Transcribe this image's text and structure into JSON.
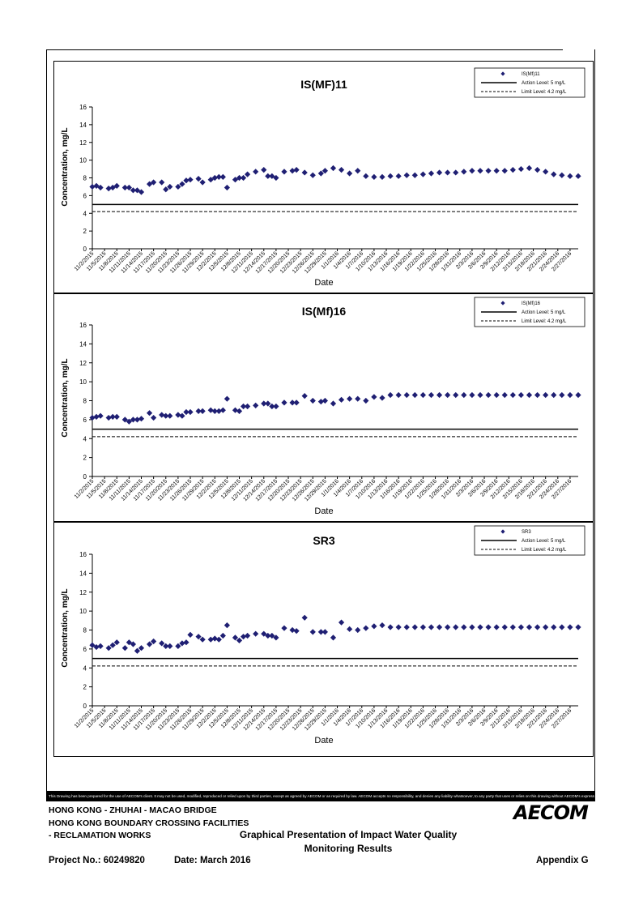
{
  "footer": {
    "disclaimer": "This Drawing has been prepared for the use of AECOM's client. It may not be used, modified, reproduced or relied upon by third parties, except as agreed by AECOM or as required by law. AECOM accepts no responsibility, and denies any liability whatsoever, to any party that uses or relies on this drawing without AECOM's express written consent.",
    "project_line1": "HONG KONG - ZHUHAI - MACAO BRIDGE",
    "project_line2": "HONG KONG BOUNDARY CROSSING FACILITIES",
    "project_line3": "- RECLAMATION WORKS",
    "logo": "AECOM",
    "title_line1": "Graphical Presentation of Impact Water Quality",
    "title_line2": "Monitoring Results",
    "project_no": "Project No.: 60249820",
    "date": "Date: March 2016",
    "appendix": "Appendix G"
  },
  "colors": {
    "marker": "#1f1f73",
    "line": "#000000"
  },
  "chart_data": [
    {
      "type": "scatter",
      "title": "IS(MF)11",
      "xlabel": "Date",
      "ylabel": "Concentration, mg/L",
      "ylim": [
        0,
        16
      ],
      "yticks": [
        0,
        2,
        4,
        6,
        8,
        10,
        12,
        14,
        16
      ],
      "xlim": [
        "11/2/2015",
        "2/29/2016"
      ],
      "grid": false,
      "legend_position": "top-right",
      "x_ticks": [
        "11/2/2015",
        "11/5/2015",
        "11/8/2015",
        "11/11/2015",
        "11/14/2015",
        "11/17/2015",
        "11/20/2015",
        "11/23/2015",
        "11/26/2015",
        "11/29/2015",
        "12/2/2015",
        "12/5/2015",
        "12/8/2015",
        "12/11/2015",
        "12/14/2015",
        "12/17/2015",
        "12/20/2015",
        "12/23/2015",
        "12/26/2015",
        "12/29/2015",
        "1/1/2016",
        "1/4/2016",
        "1/7/2016",
        "1/10/2016",
        "1/13/2016",
        "1/16/2016",
        "1/19/2016",
        "1/22/2016",
        "1/25/2016",
        "1/28/2016",
        "1/31/2016",
        "2/3/2016",
        "2/6/2016",
        "2/9/2016",
        "2/12/2016",
        "2/15/2016",
        "2/18/2016",
        "2/21/2016",
        "2/24/2016",
        "2/27/2016"
      ],
      "series": [
        {
          "name": "IS(Mf)11",
          "marker": "diamond",
          "x": [
            "11/2/2015",
            "11/3/2015",
            "11/4/2015",
            "11/6/2015",
            "11/7/2015",
            "11/8/2015",
            "11/10/2015",
            "11/11/2015",
            "11/12/2015",
            "11/13/2015",
            "11/14/2015",
            "11/16/2015",
            "11/17/2015",
            "11/19/2015",
            "11/20/2015",
            "11/21/2015",
            "11/23/2015",
            "11/24/2015",
            "11/25/2015",
            "11/26/2015",
            "11/28/2015",
            "11/29/2015",
            "12/1/2015",
            "12/2/2015",
            "12/3/2015",
            "12/4/2015",
            "12/5/2015",
            "12/7/2015",
            "12/8/2015",
            "12/9/2015",
            "12/10/2015",
            "12/12/2015",
            "12/14/2015",
            "12/15/2015",
            "12/16/2015",
            "12/17/2015",
            "12/19/2015",
            "12/21/2015",
            "12/22/2015",
            "12/24/2015",
            "12/26/2015",
            "12/28/2015",
            "12/29/2015",
            "12/31/2015",
            "1/2/2016",
            "1/4/2016",
            "1/6/2016",
            "1/8/2016",
            "1/10/2016",
            "1/12/2016",
            "1/14/2016",
            "1/16/2016",
            "1/18/2016",
            "1/20/2016",
            "1/22/2016",
            "1/24/2016",
            "1/26/2016",
            "1/28/2016",
            "1/30/2016",
            "2/1/2016",
            "2/3/2016",
            "2/5/2016",
            "2/7/2016",
            "2/9/2016",
            "2/11/2016",
            "2/13/2016",
            "2/15/2016",
            "2/17/2016",
            "2/19/2016",
            "2/21/2016",
            "2/23/2016",
            "2/25/2016",
            "2/27/2016",
            "2/29/2016"
          ],
          "values": [
            7.0,
            7.1,
            6.9,
            6.8,
            6.9,
            7.1,
            6.9,
            6.9,
            6.6,
            6.6,
            6.4,
            7.3,
            7.5,
            7.5,
            6.7,
            7.0,
            7.0,
            7.3,
            7.7,
            7.8,
            7.9,
            7.5,
            7.8,
            8.0,
            8.1,
            8.1,
            6.9,
            7.8,
            8.0,
            8.0,
            8.4,
            8.7,
            8.9,
            8.2,
            8.2,
            8.0,
            8.7,
            8.8,
            8.9,
            8.6,
            8.3,
            8.5,
            8.8,
            9.1,
            8.9,
            8.5,
            8.8,
            8.2,
            8.1,
            8.1,
            8.2,
            8.2,
            8.3,
            8.3,
            8.4,
            8.5,
            8.6,
            8.6,
            8.6,
            8.7,
            8.8,
            8.8,
            8.8,
            8.8,
            8.8,
            8.9,
            9.0,
            9.1,
            8.9,
            8.7,
            8.4,
            8.3,
            8.2,
            8.2
          ]
        },
        {
          "name": "Action Level: 5 mg/L",
          "style": "solid",
          "value": 5
        },
        {
          "name": "Limit Level: 4.2 mg/L",
          "style": "dashed",
          "value": 4.2
        }
      ]
    },
    {
      "type": "scatter",
      "title": "IS(Mf)16",
      "xlabel": "Date",
      "ylabel": "Concentration, mg/L",
      "ylim": [
        0,
        16
      ],
      "yticks": [
        0,
        2,
        4,
        6,
        8,
        10,
        12,
        14,
        16
      ],
      "xlim": [
        "11/2/2015",
        "2/29/2016"
      ],
      "grid": false,
      "legend_position": "top-right",
      "x_ticks": [
        "11/2/2015",
        "11/5/2015",
        "11/8/2015",
        "11/11/2015",
        "11/14/2015",
        "11/17/2015",
        "11/20/2015",
        "11/23/2015",
        "11/26/2015",
        "11/29/2015",
        "12/2/2015",
        "12/5/2015",
        "12/8/2015",
        "12/11/2015",
        "12/14/2015",
        "12/17/2015",
        "12/20/2015",
        "12/23/2015",
        "12/26/2015",
        "12/29/2015",
        "1/1/2016",
        "1/4/2016",
        "1/7/2016",
        "1/10/2016",
        "1/13/2016",
        "1/16/2016",
        "1/19/2016",
        "1/22/2016",
        "1/25/2016",
        "1/28/2016",
        "1/31/2016",
        "2/3/2016",
        "2/6/2016",
        "2/9/2016",
        "2/12/2016",
        "2/15/2016",
        "2/18/2016",
        "2/21/2016",
        "2/24/2016",
        "2/27/2016"
      ],
      "series": [
        {
          "name": "IS(Mf)16",
          "marker": "diamond",
          "x": [
            "11/2/2015",
            "11/3/2015",
            "11/4/2015",
            "11/6/2015",
            "11/7/2015",
            "11/8/2015",
            "11/10/2015",
            "11/11/2015",
            "11/12/2015",
            "11/13/2015",
            "11/14/2015",
            "11/16/2015",
            "11/17/2015",
            "11/19/2015",
            "11/20/2015",
            "11/21/2015",
            "11/23/2015",
            "11/24/2015",
            "11/25/2015",
            "11/26/2015",
            "11/28/2015",
            "11/29/2015",
            "12/1/2015",
            "12/2/2015",
            "12/3/2015",
            "12/4/2015",
            "12/5/2015",
            "12/7/2015",
            "12/8/2015",
            "12/9/2015",
            "12/10/2015",
            "12/12/2015",
            "12/14/2015",
            "12/15/2015",
            "12/16/2015",
            "12/17/2015",
            "12/19/2015",
            "12/21/2015",
            "12/22/2015",
            "12/24/2015",
            "12/26/2015",
            "12/28/2015",
            "12/29/2015",
            "12/31/2015",
            "1/2/2016",
            "1/4/2016",
            "1/6/2016",
            "1/8/2016",
            "1/10/2016",
            "1/12/2016",
            "1/14/2016",
            "1/16/2016",
            "1/18/2016",
            "1/20/2016",
            "1/22/2016",
            "1/24/2016",
            "1/26/2016",
            "1/28/2016",
            "1/30/2016",
            "2/1/2016",
            "2/3/2016",
            "2/5/2016",
            "2/7/2016",
            "2/9/2016",
            "2/11/2016",
            "2/13/2016",
            "2/15/2016",
            "2/17/2016",
            "2/19/2016",
            "2/21/2016",
            "2/23/2016",
            "2/25/2016",
            "2/27/2016",
            "2/29/2016"
          ],
          "values": [
            6.2,
            6.3,
            6.4,
            6.2,
            6.3,
            6.3,
            6.0,
            5.8,
            6.0,
            6.0,
            6.1,
            6.7,
            6.2,
            6.5,
            6.4,
            6.4,
            6.5,
            6.4,
            6.8,
            6.8,
            6.9,
            6.9,
            7.0,
            6.9,
            6.9,
            7.0,
            8.2,
            7.0,
            6.9,
            7.4,
            7.4,
            7.5,
            7.7,
            7.7,
            7.4,
            7.4,
            7.8,
            7.8,
            7.8,
            8.5,
            8.0,
            7.9,
            8.0,
            7.7,
            8.1,
            8.2,
            8.2,
            8.0,
            8.4,
            8.3,
            8.6,
            8.6,
            8.6,
            8.6,
            8.6,
            8.6,
            8.6,
            8.6,
            8.6,
            8.6,
            8.6,
            8.6,
            8.6,
            8.6,
            8.6,
            8.6,
            8.6,
            8.6,
            8.6,
            8.6,
            8.6,
            8.6,
            8.6,
            8.6
          ]
        },
        {
          "name": "Action Level: 5 mg/L",
          "style": "solid",
          "value": 5
        },
        {
          "name": "Limit Level: 4.2 mg/L",
          "style": "dashed",
          "value": 4.2
        }
      ]
    },
    {
      "type": "scatter",
      "title": "SR3",
      "xlabel": "Date",
      "ylabel": "Concentration, mg/L",
      "ylim": [
        0,
        16
      ],
      "yticks": [
        0,
        2,
        4,
        6,
        8,
        10,
        12,
        14,
        16
      ],
      "xlim": [
        "11/2/2015",
        "2/29/2016"
      ],
      "grid": false,
      "legend_position": "top-right",
      "x_ticks": [
        "11/2/2015",
        "11/5/2015",
        "11/8/2015",
        "11/11/2015",
        "11/14/2015",
        "11/17/2015",
        "11/20/2015",
        "11/23/2015",
        "11/26/2015",
        "11/29/2015",
        "12/2/2015",
        "12/5/2015",
        "12/8/2015",
        "12/11/2015",
        "12/14/2015",
        "12/17/2015",
        "12/20/2015",
        "12/23/2015",
        "12/26/2015",
        "12/29/2015",
        "1/1/2016",
        "1/4/2016",
        "1/7/2016",
        "1/10/2016",
        "1/13/2016",
        "1/16/2016",
        "1/19/2016",
        "1/22/2016",
        "1/25/2016",
        "1/28/2016",
        "1/31/2016",
        "2/3/2016",
        "2/6/2016",
        "2/9/2016",
        "2/12/2016",
        "2/15/2016",
        "2/18/2016",
        "2/21/2016",
        "2/24/2016",
        "2/27/2016"
      ],
      "series": [
        {
          "name": "SR3",
          "marker": "diamond",
          "x": [
            "11/2/2015",
            "11/3/2015",
            "11/4/2015",
            "11/6/2015",
            "11/7/2015",
            "11/8/2015",
            "11/10/2015",
            "11/11/2015",
            "11/12/2015",
            "11/13/2015",
            "11/14/2015",
            "11/16/2015",
            "11/17/2015",
            "11/19/2015",
            "11/20/2015",
            "11/21/2015",
            "11/23/2015",
            "11/24/2015",
            "11/25/2015",
            "11/26/2015",
            "11/28/2015",
            "11/29/2015",
            "12/1/2015",
            "12/2/2015",
            "12/3/2015",
            "12/4/2015",
            "12/5/2015",
            "12/7/2015",
            "12/8/2015",
            "12/9/2015",
            "12/10/2015",
            "12/12/2015",
            "12/14/2015",
            "12/15/2015",
            "12/16/2015",
            "12/17/2015",
            "12/19/2015",
            "12/21/2015",
            "12/22/2015",
            "12/24/2015",
            "12/26/2015",
            "12/28/2015",
            "12/29/2015",
            "12/31/2015",
            "1/2/2016",
            "1/4/2016",
            "1/6/2016",
            "1/8/2016",
            "1/10/2016",
            "1/12/2016",
            "1/14/2016",
            "1/16/2016",
            "1/18/2016",
            "1/20/2016",
            "1/22/2016",
            "1/24/2016",
            "1/26/2016",
            "1/28/2016",
            "1/30/2016",
            "2/1/2016",
            "2/3/2016",
            "2/5/2016",
            "2/7/2016",
            "2/9/2016",
            "2/11/2016",
            "2/13/2016",
            "2/15/2016",
            "2/17/2016",
            "2/19/2016",
            "2/21/2016",
            "2/23/2016",
            "2/25/2016",
            "2/27/2016",
            "2/29/2016"
          ],
          "values": [
            6.4,
            6.2,
            6.3,
            6.1,
            6.4,
            6.7,
            6.1,
            6.7,
            6.5,
            5.8,
            6.1,
            6.5,
            6.8,
            6.6,
            6.3,
            6.3,
            6.3,
            6.6,
            6.7,
            7.5,
            7.3,
            7.0,
            7.0,
            7.1,
            7.0,
            7.4,
            8.5,
            7.2,
            6.9,
            7.3,
            7.4,
            7.6,
            7.6,
            7.4,
            7.4,
            7.2,
            8.2,
            8.0,
            7.9,
            9.3,
            7.8,
            7.8,
            7.8,
            7.2,
            8.8,
            8.1,
            8.0,
            8.2,
            8.4,
            8.5,
            8.3,
            8.3,
            8.3,
            8.3,
            8.3,
            8.3,
            8.3,
            8.3,
            8.3,
            8.3,
            8.3,
            8.3,
            8.3,
            8.3,
            8.3,
            8.3,
            8.3,
            8.3,
            8.3,
            8.3,
            8.3,
            8.3,
            8.3,
            8.3
          ]
        },
        {
          "name": "Action Level: 5 mg/L",
          "style": "solid",
          "value": 5
        },
        {
          "name": "Limit Level: 4.2 mg/L",
          "style": "dashed",
          "value": 4.2
        }
      ]
    }
  ]
}
